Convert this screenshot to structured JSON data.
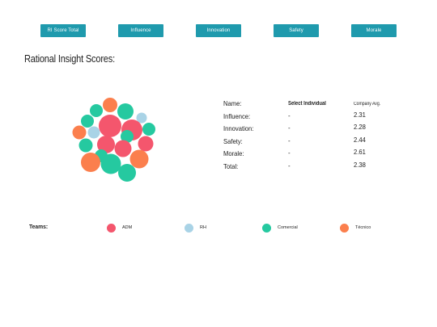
{
  "tabs": [
    {
      "label": "RI Score Total"
    },
    {
      "label": "Influence"
    },
    {
      "label": "Innovation"
    },
    {
      "label": "Safety"
    },
    {
      "label": "Morale"
    }
  ],
  "title": "Rational Insight Scores:",
  "scores": {
    "name_label": "Name:",
    "select_individual": "Select Individual",
    "company_avg_header": "Company Avg.",
    "rows": [
      {
        "label": "Influence:",
        "value": "-",
        "avg": "2.31"
      },
      {
        "label": "Innovation:",
        "value": "-",
        "avg": "2.28"
      },
      {
        "label": "Safety:",
        "value": "-",
        "avg": "2.44"
      },
      {
        "label": "Morale:",
        "value": "-",
        "avg": "2.61"
      },
      {
        "label": "Total:",
        "value": "-",
        "avg": "2.38"
      }
    ]
  },
  "teams": {
    "label": "Teams:",
    "items": [
      {
        "name": "ADM",
        "color": "#f4566d"
      },
      {
        "name": "RH",
        "color": "#a9d3e6"
      },
      {
        "name": "Comercial",
        "color": "#25c9a0"
      },
      {
        "name": "Técnico",
        "color": "#fb7f4d"
      }
    ]
  },
  "bubbles": [
    {
      "team": "Técnico"
    },
    {
      "team": "Comercial"
    },
    {
      "team": "Comercial"
    },
    {
      "team": "Comercial"
    },
    {
      "team": "ADM"
    },
    {
      "team": "RH"
    },
    {
      "team": "Técnico"
    },
    {
      "team": "RH"
    },
    {
      "team": "ADM"
    },
    {
      "team": "Comercial"
    },
    {
      "team": "ADM"
    },
    {
      "team": "Comercial"
    },
    {
      "team": "ADM"
    },
    {
      "team": "Comercial"
    },
    {
      "team": "ADM"
    },
    {
      "team": "Comercial"
    },
    {
      "team": "Técnico"
    },
    {
      "team": "Comercial"
    },
    {
      "team": "Técnico"
    },
    {
      "team": "Comercial"
    }
  ]
}
